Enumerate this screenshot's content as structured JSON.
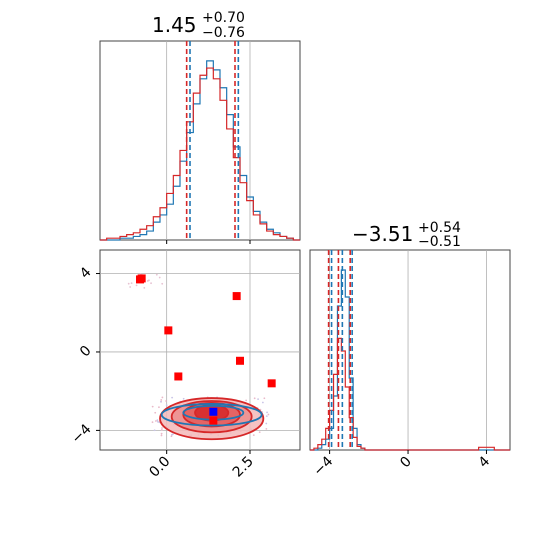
{
  "chart_data": [
    {
      "type": "histogram",
      "panel": "top-left",
      "param_index": 0,
      "title": {
        "main": "1.45",
        "sup": "+0.70",
        "sub": "−0.76"
      },
      "xlim": [
        -2,
        4
      ],
      "grid": true,
      "colors": {
        "blue": "#1f77b4",
        "red": "#d62728"
      },
      "quantile_lines": {
        "blue": [
          0.7,
          1.45,
          2.15
        ],
        "red": [
          0.6,
          1.35,
          2.05
        ]
      },
      "series": [
        {
          "color": "blue",
          "bin_edges": [
            -2.0,
            -1.8,
            -1.6,
            -1.4,
            -1.2,
            -1.0,
            -0.8,
            -0.6,
            -0.4,
            -0.2,
            0.0,
            0.2,
            0.4,
            0.6,
            0.8,
            1.0,
            1.2,
            1.4,
            1.6,
            1.8,
            2.0,
            2.2,
            2.4,
            2.6,
            2.8,
            3.0,
            3.2,
            3.4,
            3.6,
            3.8,
            4.0
          ],
          "counts": [
            0.0,
            0.0,
            0.0,
            0.01,
            0.01,
            0.02,
            0.03,
            0.05,
            0.1,
            0.14,
            0.2,
            0.3,
            0.44,
            0.6,
            0.76,
            0.9,
            1.0,
            0.95,
            0.85,
            0.7,
            0.52,
            0.36,
            0.24,
            0.16,
            0.1,
            0.06,
            0.04,
            0.02,
            0.01,
            0.0
          ]
        },
        {
          "color": "red",
          "bin_edges": [
            -2.0,
            -1.8,
            -1.6,
            -1.4,
            -1.2,
            -1.0,
            -0.8,
            -0.6,
            -0.4,
            -0.2,
            0.0,
            0.2,
            0.4,
            0.6,
            0.8,
            1.0,
            1.2,
            1.4,
            1.6,
            1.8,
            2.0,
            2.2,
            2.4,
            2.6,
            2.8,
            3.0,
            3.2,
            3.4,
            3.6,
            3.8,
            4.0
          ],
          "counts": [
            0.0,
            0.01,
            0.01,
            0.02,
            0.03,
            0.04,
            0.06,
            0.08,
            0.13,
            0.18,
            0.26,
            0.36,
            0.5,
            0.66,
            0.82,
            0.92,
            0.96,
            0.9,
            0.78,
            0.62,
            0.46,
            0.32,
            0.22,
            0.14,
            0.09,
            0.05,
            0.03,
            0.02,
            0.01,
            0.0
          ]
        }
      ]
    },
    {
      "type": "scatter",
      "panel": "bottom-left",
      "xlim": [
        -2,
        4
      ],
      "ylim": [
        -5,
        5.2
      ],
      "xticks": [
        0.0,
        2.5
      ],
      "xtick_labels": [
        "0.0",
        "2.5"
      ],
      "yticks": [
        4,
        0,
        -4
      ],
      "ytick_labels": [
        "4",
        "0",
        "−4"
      ],
      "grid": true,
      "red_points": [
        [
          -0.75,
          3.75
        ],
        [
          -0.8,
          3.7
        ],
        [
          0.05,
          1.1
        ],
        [
          2.1,
          2.85
        ],
        [
          2.2,
          -0.45
        ],
        [
          0.35,
          -1.25
        ],
        [
          3.15,
          -1.6
        ],
        [
          1.4,
          -3.5
        ]
      ],
      "blue_points": [
        [
          1.4,
          -3.05
        ]
      ],
      "red_contour_levels": [
        {
          "cx": 1.35,
          "cy": -3.4,
          "rx": 1.55,
          "ry": 1.05
        },
        {
          "cx": 1.35,
          "cy": -3.3,
          "rx": 1.2,
          "ry": 0.8
        },
        {
          "cx": 1.35,
          "cy": -3.2,
          "rx": 0.85,
          "ry": 0.6
        },
        {
          "cx": 1.35,
          "cy": -3.1,
          "rx": 0.5,
          "ry": 0.4
        }
      ],
      "blue_contour_levels": [
        {
          "cx": 1.35,
          "cy": -3.2,
          "rx": 1.5,
          "ry": 0.55
        },
        {
          "cx": 1.4,
          "cy": -3.1,
          "rx": 0.9,
          "ry": 0.35
        }
      ]
    },
    {
      "type": "histogram",
      "panel": "bottom-right",
      "param_index": 1,
      "title": {
        "main": "−3.51",
        "sup": "+0.54",
        "sub": "−0.51"
      },
      "xlim": [
        -5,
        5.2
      ],
      "xticks": [
        -4,
        0,
        4
      ],
      "xtick_labels": [
        "−4",
        "0",
        "4"
      ],
      "grid": true,
      "quantile_lines": {
        "blue": [
          -3.9,
          -3.35,
          -2.85
        ],
        "red": [
          -4.05,
          -3.55,
          -2.95
        ]
      },
      "series": [
        {
          "color": "blue",
          "bin_edges": [
            -5.0,
            -4.8,
            -4.6,
            -4.4,
            -4.2,
            -4.0,
            -3.8,
            -3.6,
            -3.4,
            -3.2,
            -3.0,
            -2.8,
            -2.6,
            -2.4,
            -2.2,
            -2.0
          ],
          "counts": [
            0.0,
            0.0,
            0.01,
            0.03,
            0.06,
            0.12,
            0.3,
            0.8,
            1.0,
            0.85,
            0.4,
            0.12,
            0.03,
            0.01,
            0.0
          ]
        },
        {
          "color": "red",
          "bin_edges": [
            -5.0,
            -4.8,
            -4.6,
            -4.4,
            -4.2,
            -4.0,
            -3.8,
            -3.6,
            -3.4,
            -3.2,
            -3.0,
            -2.8,
            -2.6,
            -2.4,
            -2.2,
            -2.0
          ],
          "counts": [
            0.0,
            0.01,
            0.03,
            0.06,
            0.12,
            0.22,
            0.42,
            0.62,
            0.55,
            0.35,
            0.18,
            0.07,
            0.02,
            0.01,
            0.0
          ],
          "tail": [
            {
              "x": [
                3.6,
                4.4
              ],
              "count": 0.015
            }
          ]
        }
      ]
    }
  ]
}
